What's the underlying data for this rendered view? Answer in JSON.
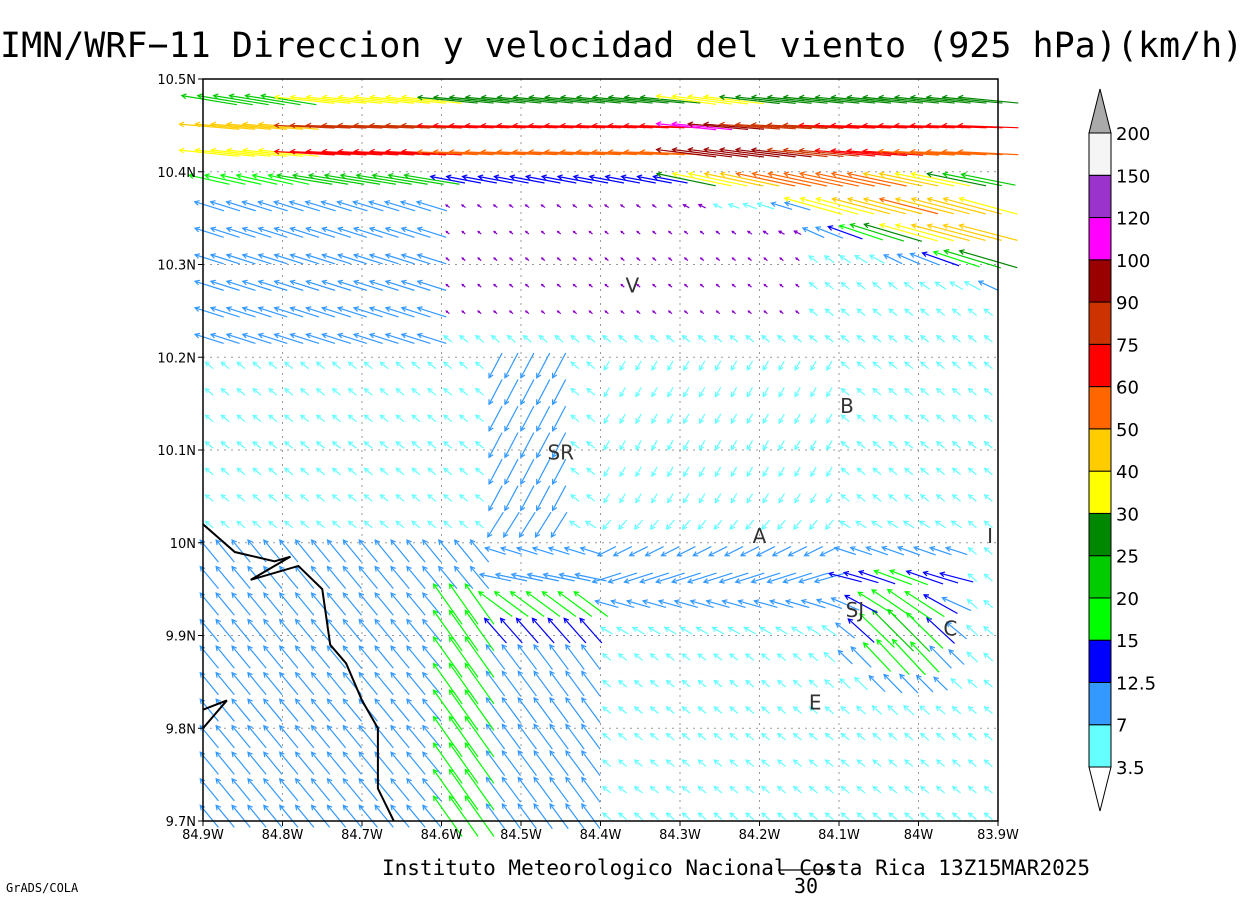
{
  "title": "IMN/WRF−11 Direccion y velocidad del viento (925 hPa)(km/h)",
  "footer": {
    "credit": "Instituto Meteorologico Nacional Costa Rica 13Z15MAR2025",
    "software": "GrADS/COLA",
    "reference_vector_label": "30"
  },
  "map": {
    "lon_range": [
      -84.9,
      -83.9
    ],
    "lat_range": [
      9.7,
      10.5
    ],
    "grid_spacing_deg": 0.1,
    "x_tick_labels": [
      "84.9W",
      "84.8W",
      "84.7W",
      "84.6W",
      "84.5W",
      "84.4W",
      "84.3W",
      "84.2W",
      "84.1W",
      "84W",
      "83.9W"
    ],
    "y_tick_labels": [
      "10.5N",
      "10.4N",
      "10.3N",
      "10.2N",
      "10.1N",
      "10N",
      "9.9N",
      "9.8N",
      "9.7N"
    ],
    "station_labels": [
      {
        "text": "V",
        "lon": -84.36,
        "lat": 10.27
      },
      {
        "text": "B",
        "lon": -84.09,
        "lat": 10.14
      },
      {
        "text": "SR",
        "lon": -84.45,
        "lat": 10.09
      },
      {
        "text": "A",
        "lon": -84.2,
        "lat": 10.0
      },
      {
        "text": "I",
        "lon": -83.91,
        "lat": 10.0
      },
      {
        "text": "SJ",
        "lon": -84.08,
        "lat": 9.92
      },
      {
        "text": "C",
        "lon": -83.96,
        "lat": 9.9
      },
      {
        "text": "E",
        "lon": -84.13,
        "lat": 9.82
      }
    ]
  },
  "colorbar": {
    "colors": [
      "#66ffff",
      "#3399ff",
      "#0000ff",
      "#00ff00",
      "#00cc00",
      "#008800",
      "#ffff00",
      "#ffcc00",
      "#ff6600",
      "#ff0000",
      "#cc3300",
      "#990000",
      "#ff00ff",
      "#9933cc",
      "#f5f5f5"
    ],
    "top_arrow_color": "#aaaaaa",
    "labels": [
      "3.5",
      "7",
      "12.5",
      "15",
      "20",
      "25",
      "30",
      "40",
      "50",
      "60",
      "75",
      "90",
      "100",
      "120",
      "150",
      "200"
    ]
  },
  "colors": {
    "speed_lt_3_5": "#8800cc",
    "coastline": "#000000",
    "grid": "#999999"
  }
}
